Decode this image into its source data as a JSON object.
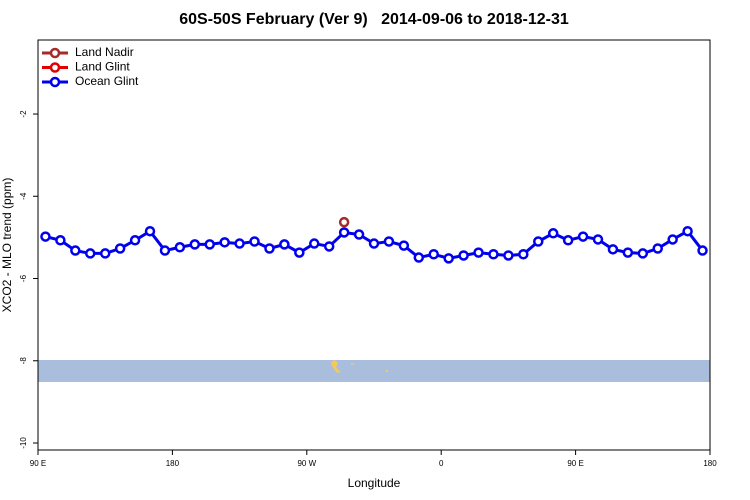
{
  "chart_data": {
    "type": "line",
    "title": "60S-50S February (Ver 9)   2014-09-06 to 2018-12-31",
    "xlabel": "Longitude",
    "ylabel": "XCO2 - MLO trend (ppm)",
    "xlim": [
      90,
      540
    ],
    "xticks": [
      {
        "value": 90,
        "label": "90 E"
      },
      180,
      {
        "value": 270,
        "label": "90 W"
      },
      {
        "value": 360,
        "label": "0"
      },
      {
        "value": 450,
        "label": "90 E"
      },
      {
        "value": 540,
        "label": "180"
      }
    ],
    "ylim": [
      -10.17,
      -0.2
    ],
    "yticks": [
      -10,
      -8,
      -6,
      -4,
      -2
    ],
    "legend": "top-left",
    "series": [
      {
        "name": "Land Nadir",
        "color": "#a52a2a",
        "x": [
          295
        ],
        "values": [
          -4.63
        ]
      },
      {
        "name": "Land Glint",
        "color": "#e00000",
        "x": [],
        "values": []
      },
      {
        "name": "Ocean Glint",
        "color": "#0000ee",
        "x": [
          95,
          105,
          115,
          125,
          135,
          145,
          155,
          165,
          175,
          185,
          195,
          205,
          215,
          225,
          235,
          245,
          255,
          265,
          275,
          285,
          295,
          305,
          315,
          325,
          335,
          345,
          355,
          365,
          375,
          385,
          395,
          405,
          415,
          425,
          435,
          445,
          455,
          465,
          475,
          485,
          495,
          505,
          515,
          525,
          535
        ],
        "values": [
          -4.98,
          -5.07,
          -5.32,
          -5.39,
          -5.39,
          -5.27,
          -5.07,
          -4.85,
          -5.32,
          -5.24,
          -5.17,
          -5.17,
          -5.12,
          -5.15,
          -5.1,
          -5.27,
          -5.17,
          -5.37,
          -5.15,
          -5.22,
          -4.88,
          -4.93,
          -5.15,
          -5.1,
          -5.2,
          -5.49,
          -5.41,
          -5.51,
          -5.44,
          -5.37,
          -5.41,
          -5.44,
          -5.41,
          -5.1,
          -4.9,
          -5.07,
          -4.98,
          -5.05,
          -5.29,
          -5.37,
          -5.39,
          -5.27,
          -5.05,
          -4.85,
          -5.32
        ]
      }
    ]
  }
}
